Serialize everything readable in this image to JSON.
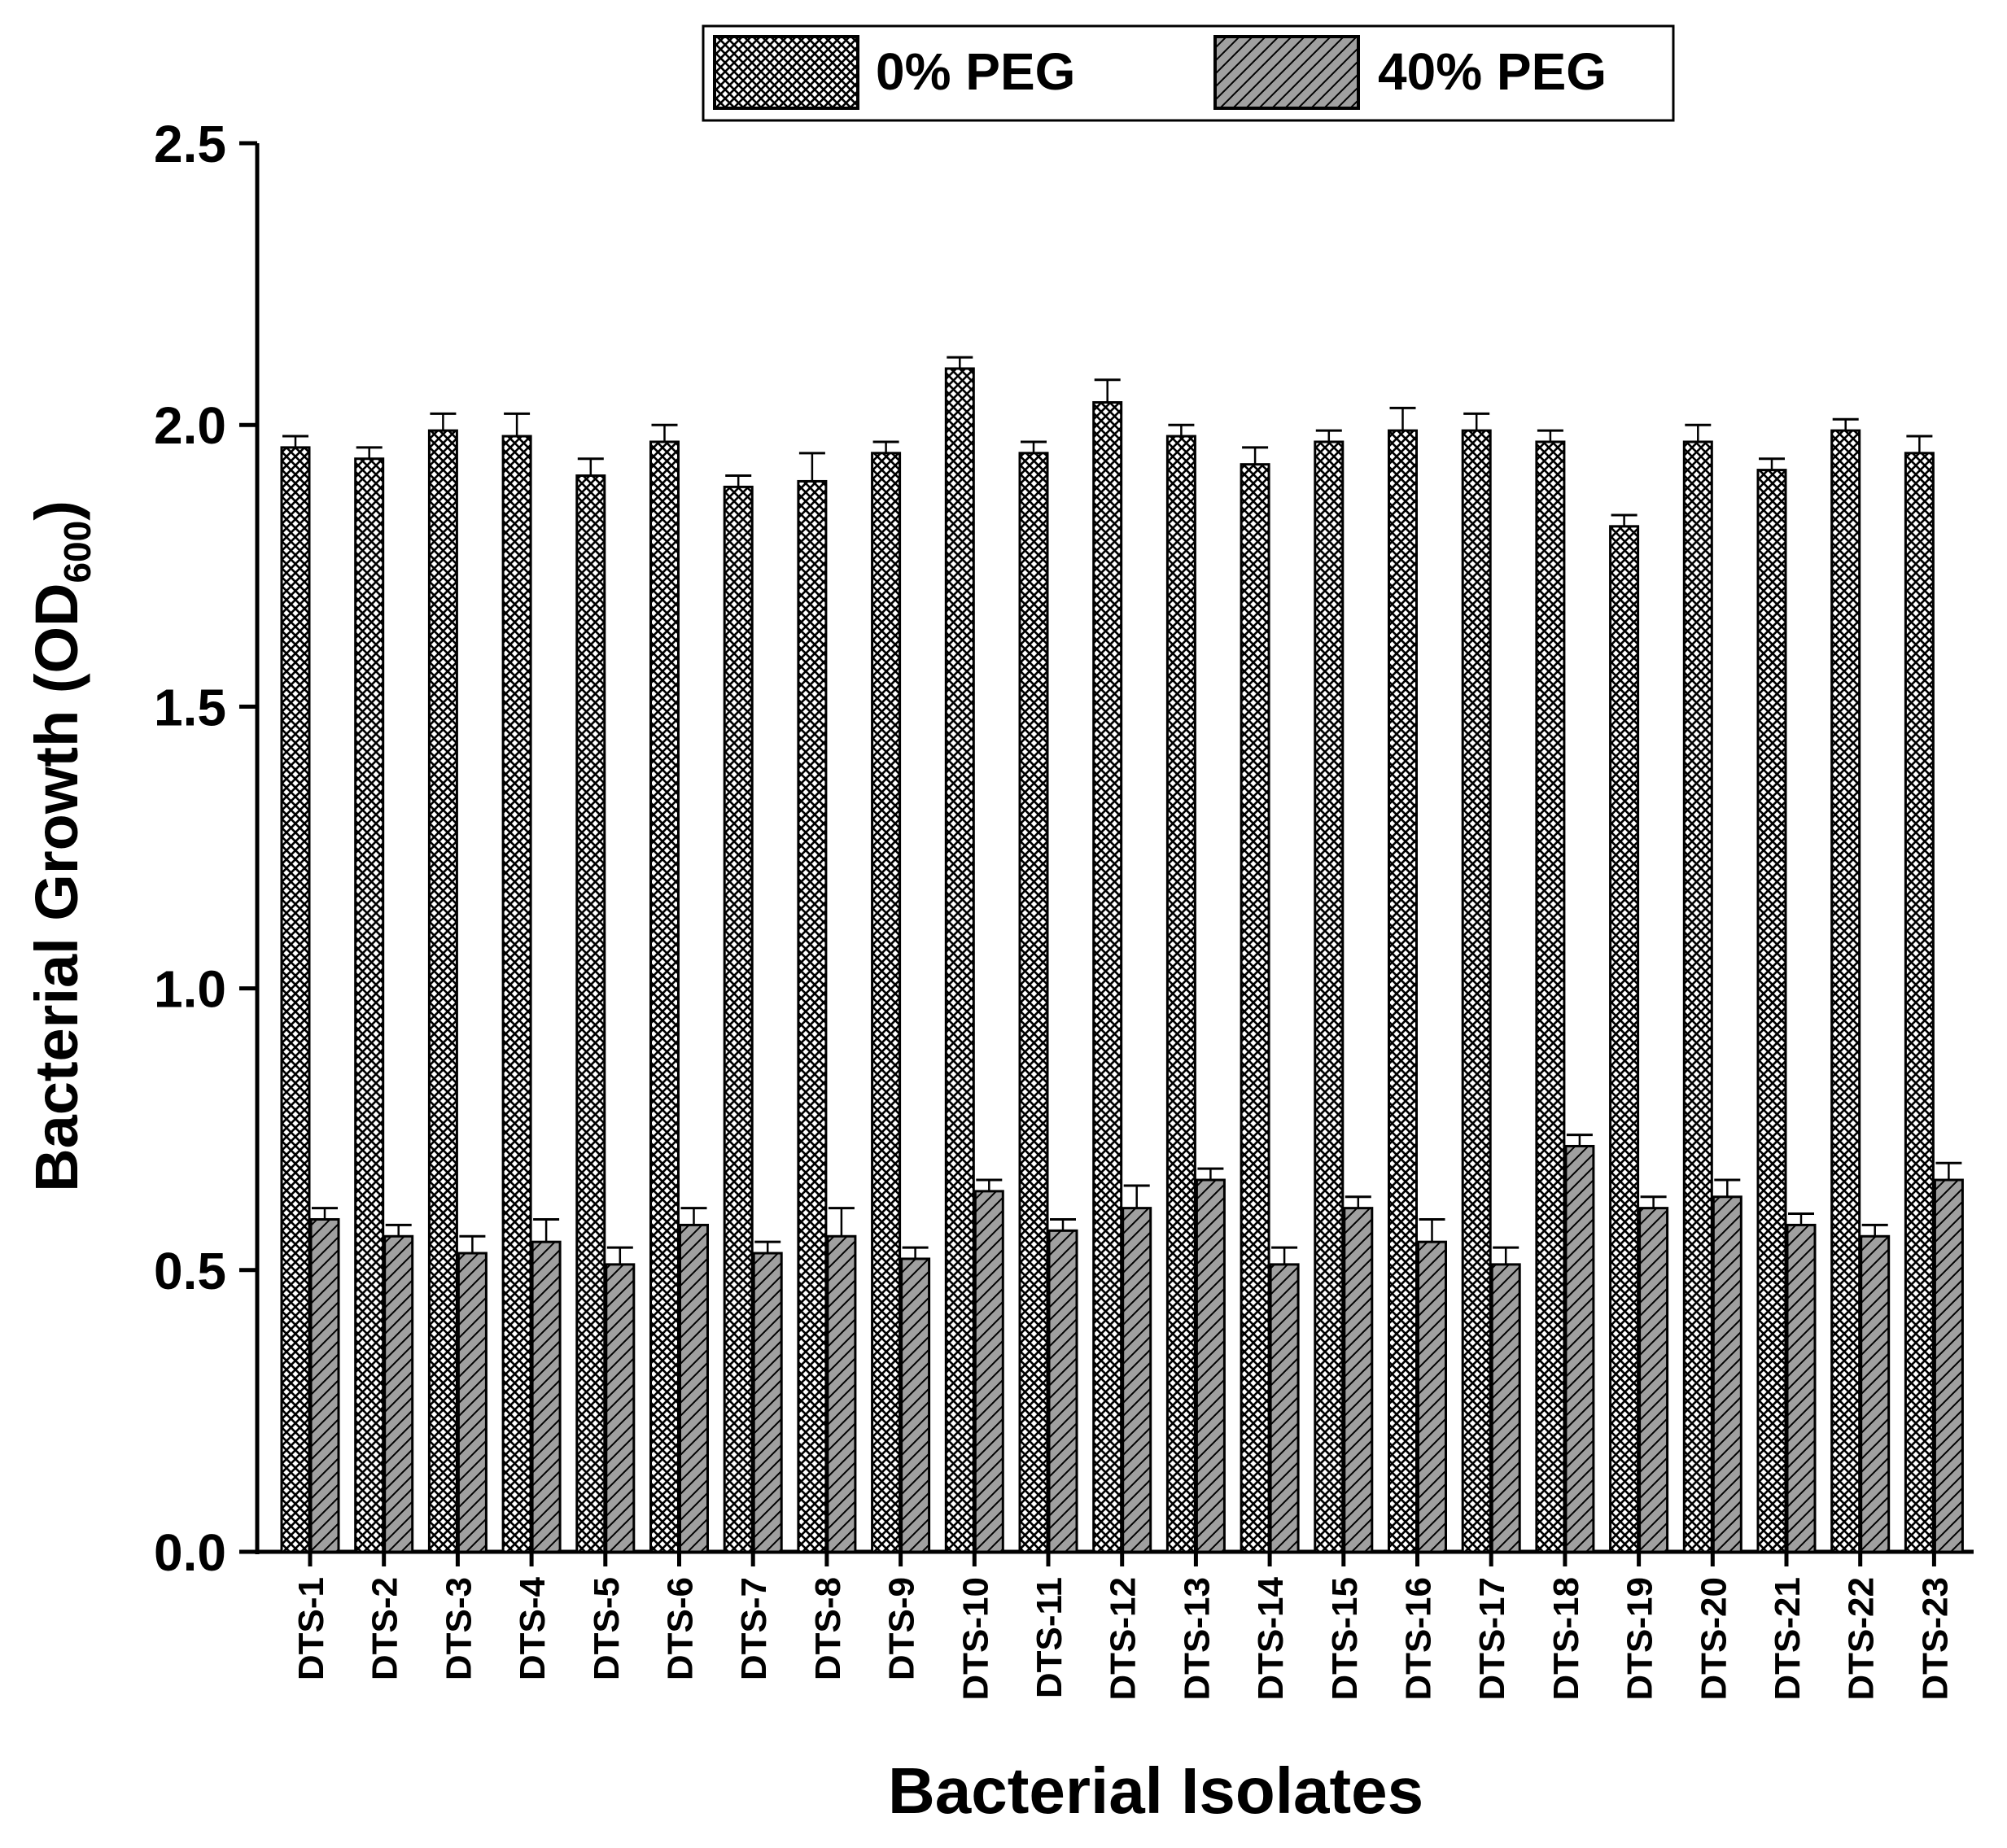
{
  "chart_data": {
    "type": "bar",
    "xlabel": "Bacterial Isolates",
    "ylabel": {
      "main": "Bacterial Growth (OD",
      "subscript": "600",
      "close": ")"
    },
    "ylim": [
      0,
      2.5
    ],
    "yticks": [
      "0.0",
      "0.5",
      "1.0",
      "1.5",
      "2.0",
      "2.5"
    ],
    "ytick_values": [
      0,
      0.5,
      1.0,
      1.5,
      2.0,
      2.5
    ],
    "grid": false,
    "legend_position": "top-center",
    "categories": [
      "DTS-1",
      "DTS-2",
      "DTS-3",
      "DTS-4",
      "DTS-5",
      "DTS-6",
      "DTS-7",
      "DTS-8",
      "DTS-9",
      "DTS-10",
      "DTS-11",
      "DTS-12",
      "DTS-13",
      "DTS-14",
      "DTS-15",
      "DTS-16",
      "DTS-17",
      "DTS-18",
      "DTS-19",
      "DTS-20",
      "DTS-21",
      "DTS-22",
      "DTS-23"
    ],
    "series": [
      {
        "name": "0% PEG",
        "pattern": "crosshatch",
        "color": "#ffffff",
        "values": [
          1.96,
          1.94,
          1.99,
          1.98,
          1.91,
          1.97,
          1.89,
          1.9,
          1.95,
          2.1,
          1.95,
          2.04,
          1.98,
          1.93,
          1.97,
          1.99,
          1.99,
          1.97,
          1.82,
          1.97,
          1.92,
          1.99,
          1.95
        ],
        "errors": [
          0.02,
          0.02,
          0.03,
          0.04,
          0.03,
          0.03,
          0.02,
          0.05,
          0.02,
          0.02,
          0.02,
          0.04,
          0.02,
          0.03,
          0.02,
          0.04,
          0.03,
          0.02,
          0.02,
          0.03,
          0.02,
          0.02,
          0.03
        ]
      },
      {
        "name": "40% PEG",
        "pattern": "diagonal",
        "color": "#a0a0a0",
        "values": [
          0.59,
          0.56,
          0.53,
          0.55,
          0.51,
          0.58,
          0.53,
          0.56,
          0.52,
          0.64,
          0.57,
          0.61,
          0.66,
          0.51,
          0.61,
          0.55,
          0.51,
          0.72,
          0.61,
          0.63,
          0.58,
          0.56,
          0.66
        ],
        "errors": [
          0.02,
          0.02,
          0.03,
          0.04,
          0.03,
          0.03,
          0.02,
          0.05,
          0.02,
          0.02,
          0.02,
          0.04,
          0.02,
          0.03,
          0.02,
          0.04,
          0.03,
          0.02,
          0.02,
          0.03,
          0.02,
          0.02,
          0.03
        ]
      }
    ]
  }
}
